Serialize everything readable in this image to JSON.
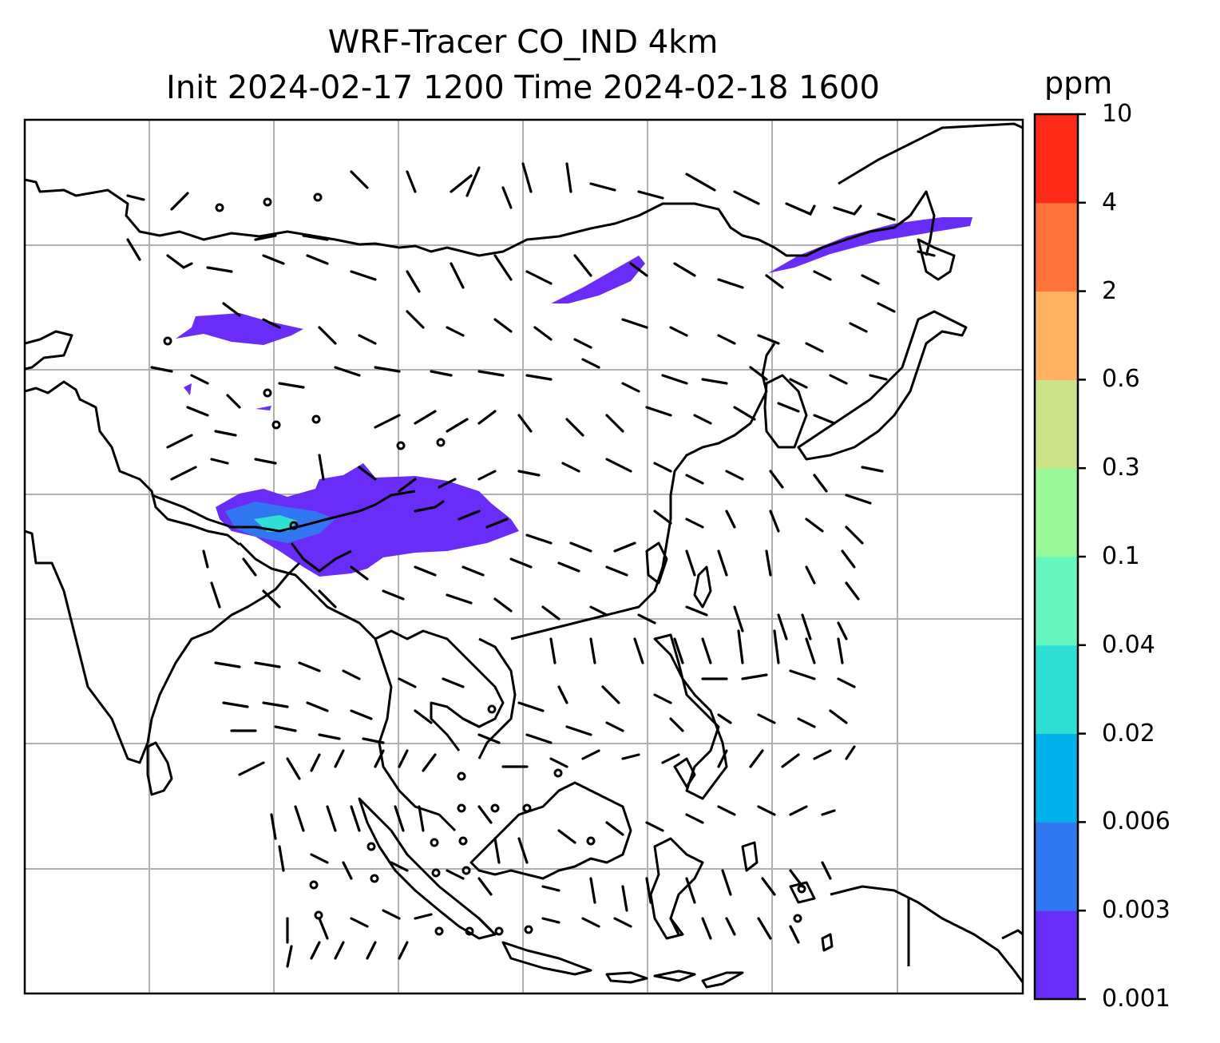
{
  "title": {
    "line1": "WRF-Tracer CO_IND 4km",
    "line2": "Init 2024-02-17 1200 Time 2024-02-18 1600"
  },
  "colorbar": {
    "unit": "ppm",
    "levels": [
      "0.001",
      "0.003",
      "0.006",
      "0.02",
      "0.04",
      "0.1",
      "0.3",
      "0.6",
      "2",
      "4",
      "10"
    ],
    "colors": [
      "#6a2cf8",
      "#3277f2",
      "#00b0ea",
      "#2fdfd3",
      "#66f7c1",
      "#99f898",
      "#cde389",
      "#ffb060",
      "#ff7239",
      "#ff2a18"
    ]
  },
  "map": {
    "grid": "on",
    "coastline_color": "#000000",
    "barb_color": "#000000",
    "tracer_color": "#6a2cf8"
  }
}
